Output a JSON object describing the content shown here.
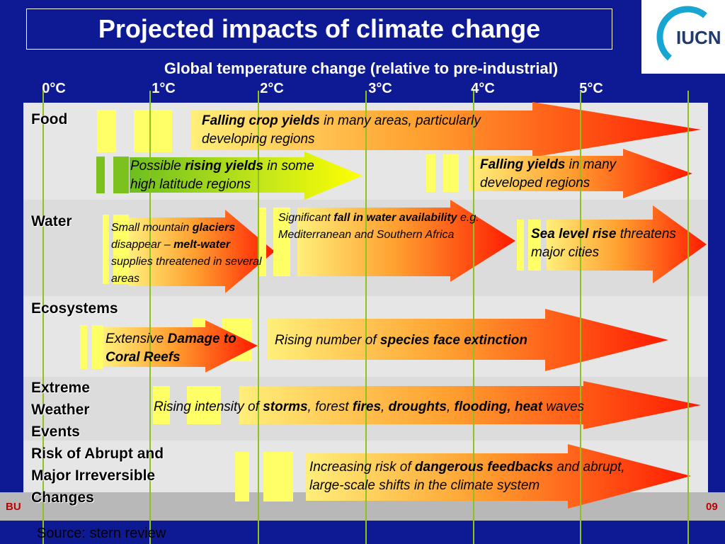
{
  "title": "Projected impacts of climate change",
  "subtitle": "Global temperature change (relative to pre-industrial)",
  "temperature_axis": [
    "0°C",
    "1°C",
    "2°C",
    "3°C",
    "4°C",
    "5°C"
  ],
  "logo_text": "IUCN",
  "rows": {
    "food": "Food",
    "water": "Water",
    "ecosystems": "Ecosystems",
    "extreme_weather": [
      "Extreme",
      "Weather",
      "Events"
    ],
    "abrupt": [
      "Risk of Abrupt and",
      "Major Irreversible",
      "Changes"
    ]
  },
  "arrows": {
    "crop_yields": {
      "bold": "Falling crop yields",
      "rest": " in many areas, particularly developing regions"
    },
    "rising_yields": {
      "pre": "Possible ",
      "bold": "rising yields",
      "rest": " in some high latitude regions"
    },
    "developed_yields": {
      "bold": "Falling yields",
      "rest": " in many developed regions"
    },
    "glaciers": {
      "pre": "Small mountain ",
      "bold1": "glaciers",
      "mid": " disappear  – ",
      "bold2": "melt-water",
      "rest": " supplies threatened in several areas"
    },
    "water_availability": {
      "pre": "Significant ",
      "bold": "fall in water availability",
      "rest": " e.g. Mediterranean and Southern Africa"
    },
    "sea_level": {
      "bold": "Sea level rise",
      "rest": " threatens major cities"
    },
    "coral": {
      "pre": "Extensive ",
      "bold": "Damage to Coral Reefs"
    },
    "species": {
      "pre": "Rising number of ",
      "bold": "species face extinction"
    },
    "storms": {
      "pre": "Rising intensity of ",
      "b1": "storms",
      "s1": ", forest ",
      "b2": "fires",
      "s2": ", ",
      "b3": "droughts",
      "s3": ", ",
      "b4": "flooding, heat",
      "rest": " waves"
    },
    "feedbacks": {
      "pre": "Increasing risk of ",
      "bold": "dangerous feedbacks",
      "rest": " and abrupt, large-scale shifts in the climate system"
    }
  },
  "footer": {
    "left": "BU",
    "right": "09"
  },
  "source": "Source: stern review",
  "colors": {
    "background": "#0e1a93",
    "band_light": "#e8e8e8",
    "band_dark": "#dcdcdc",
    "arrow_start": "#ffe066",
    "arrow_end": "#ff2200",
    "green_arrow": "#7cc21e",
    "bars": "#ffff66",
    "gridline": "#8fc21e"
  }
}
